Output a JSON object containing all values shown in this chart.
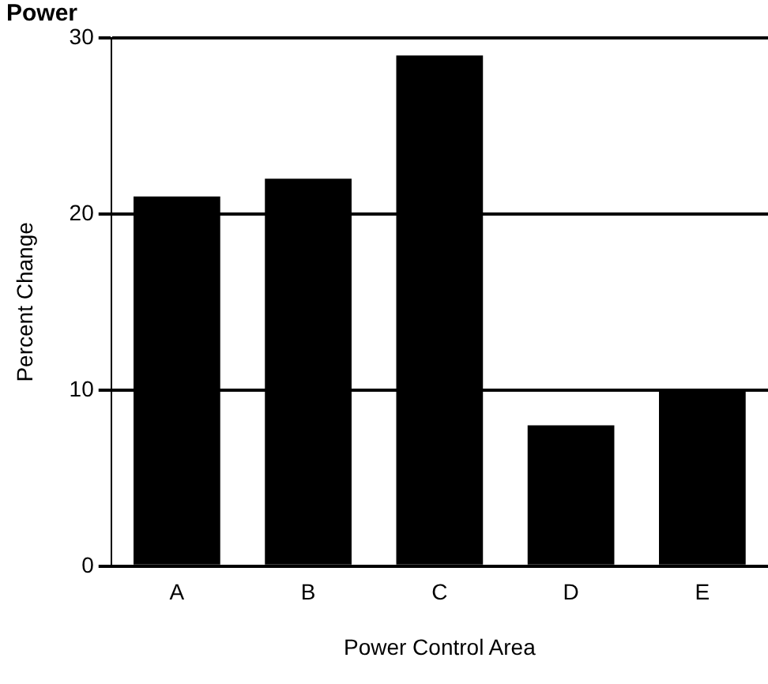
{
  "chart_data": {
    "type": "bar",
    "title": "Power",
    "xlabel": "Power Control Area",
    "ylabel": "Percent Change",
    "categories": [
      "A",
      "B",
      "C",
      "D",
      "E"
    ],
    "values": [
      21,
      22,
      29,
      8,
      10
    ],
    "color": "#000000",
    "ylim": [
      0,
      30
    ],
    "yticks": [
      0,
      10,
      20,
      30
    ],
    "grid": "y"
  }
}
